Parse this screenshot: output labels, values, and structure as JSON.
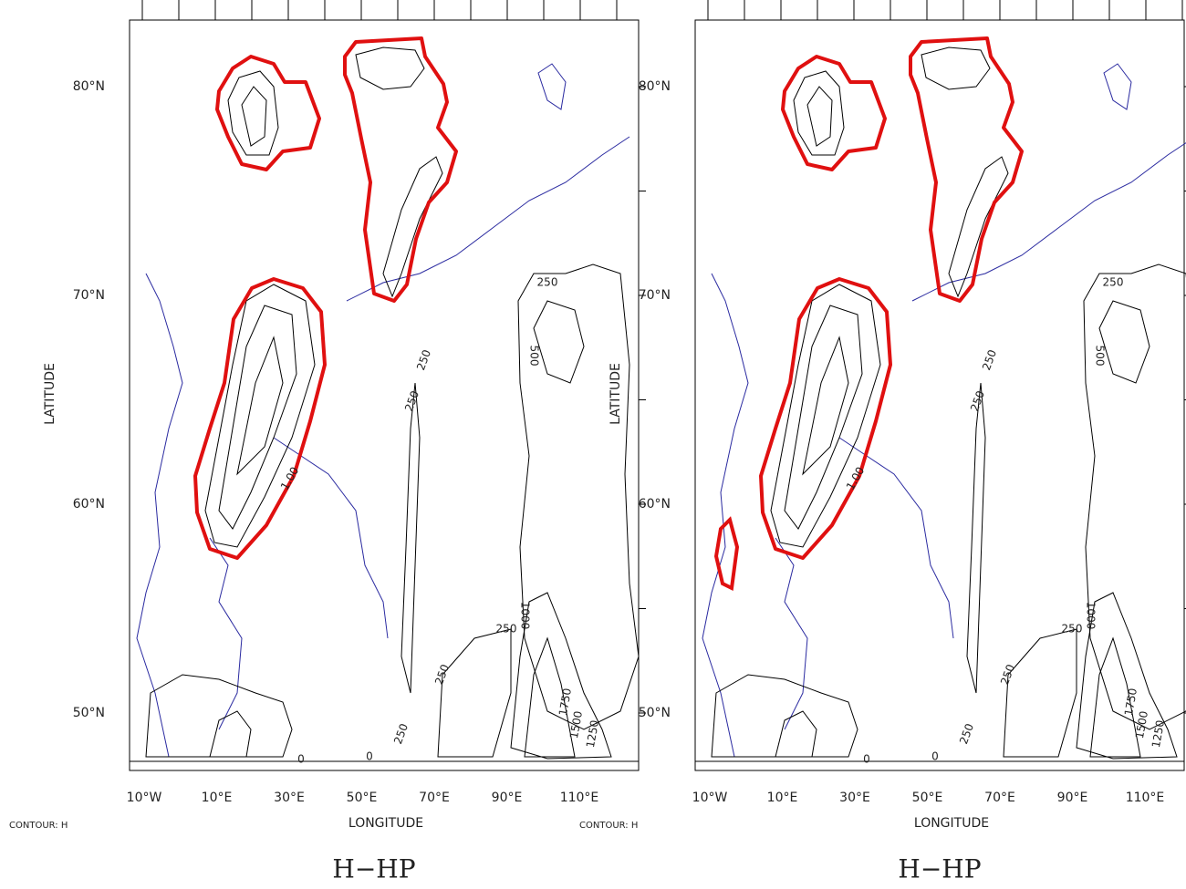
{
  "panels": [
    {
      "x_ticks": [
        "10°W",
        "10°E",
        "30°E",
        "50°E",
        "70°E",
        "90°E",
        "110°E"
      ],
      "y_ticks": [
        "80°N",
        "70°N",
        "60°N",
        "50°N"
      ],
      "x_label": "LONGITUDE",
      "y_label": "LATITUDE",
      "footer": "CONTOUR: H",
      "title": "H−HP",
      "contour_labels": [
        "250",
        "500",
        "250",
        "250",
        "1000",
        "250",
        "1750",
        "1500",
        "1250",
        "250",
        "250",
        "0",
        "0",
        "1.00"
      ]
    },
    {
      "x_ticks": [
        "10°W",
        "10°E",
        "30°E",
        "50°E",
        "70°E",
        "90°E",
        "110°E"
      ],
      "y_ticks": [
        "80°N",
        "70°N",
        "60°N",
        "50°N"
      ],
      "x_label": "LONGITUDE",
      "y_label": "LATITUDE",
      "footer": "CONTOUR: H",
      "title": "H−HP",
      "contour_labels": [
        "250",
        "500",
        "250",
        "250",
        "1000",
        "250",
        "1750",
        "1500",
        "1250",
        "250",
        "250",
        "0",
        "0",
        "1.00"
      ]
    }
  ]
}
